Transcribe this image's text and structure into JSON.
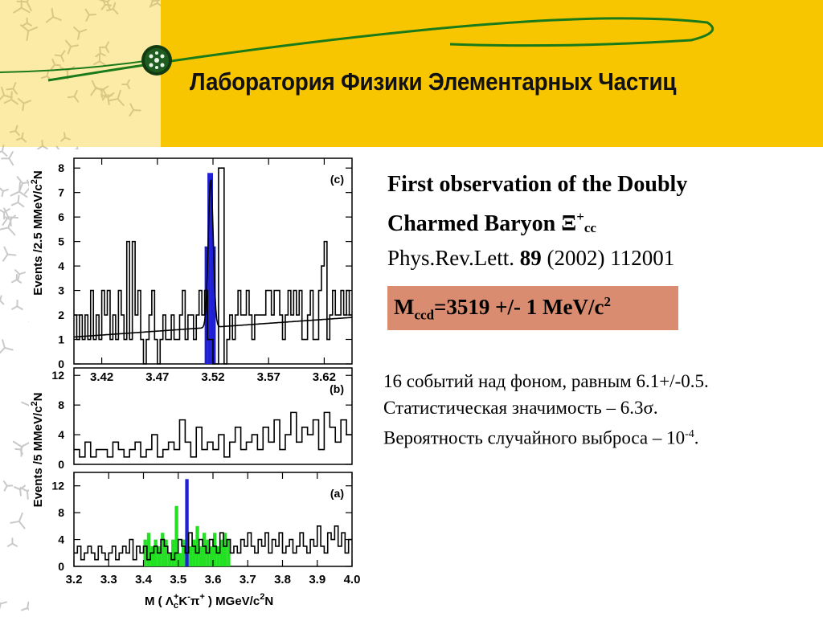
{
  "header": {
    "title": "Лаборатория Физики Элементарных Частиц",
    "logo_icon": "atom-logo-icon",
    "band_color": "#f7c600"
  },
  "paper": {
    "title_line1": "First observation of the Doubly",
    "title_line2": "Charmed Baryon Ξ",
    "title_sup": "+",
    "title_sub": "cc",
    "journal": "Phys.Rev.Lett.",
    "volume": "89",
    "year_page": "(2002) 112001"
  },
  "mass": {
    "prefix": "M",
    "sub": "ccd",
    "value": "=3519 +/- 1 MeV/c",
    "sup": "2",
    "box_color": "#d98c6f"
  },
  "facts": {
    "line1": "16 событий над фоном, равным 6.1+/-0.5.",
    "line2": "Статистическая значимость – 6.3σ.",
    "line3_main": "Вероятность случайного выброса – 10",
    "line3_sup": "-4",
    "line3_end": "."
  },
  "chart_data": [
    {
      "type": "bar",
      "label": "(c)",
      "ylabel": "Events /2.5 MeV/c²",
      "xlim": [
        3.395,
        3.645
      ],
      "ylim": [
        0,
        8.4
      ],
      "yticks": [
        "0",
        "1",
        "2",
        "3",
        "4",
        "5",
        "6",
        "7",
        "8"
      ],
      "xticks": [
        "3.42",
        "3.47",
        "3.52",
        "3.57",
        "3.62"
      ],
      "bin_start": 3.395,
      "bin_width": 0.0025,
      "values": [
        2,
        1,
        2,
        1,
        2,
        1,
        3,
        1,
        2,
        1,
        3,
        2,
        3,
        1,
        2,
        1,
        3,
        2,
        1,
        5,
        1,
        5,
        2,
        3,
        1,
        0,
        1,
        2,
        3,
        1,
        0,
        1,
        2,
        1,
        1,
        2,
        1,
        1,
        2,
        3,
        1,
        2,
        2,
        1,
        2,
        3,
        2,
        3,
        1,
        1,
        0,
        0,
        8,
        8,
        0,
        1,
        2,
        1,
        2,
        3,
        2,
        2,
        3,
        2,
        1,
        2,
        2,
        2,
        2,
        3,
        3,
        2,
        3,
        3,
        2,
        1,
        2,
        3,
        2,
        3,
        2,
        3,
        1,
        1,
        2,
        3,
        1,
        1,
        3,
        4,
        5,
        1,
        2,
        3,
        2,
        2,
        3,
        2,
        3,
        2
      ],
      "highlight": {
        "color": "#1f1fd6",
        "x_range": [
          3.5125,
          3.5225
        ],
        "values": [
          4.8,
          7.8,
          7.8,
          4.8
        ]
      },
      "fit": {
        "background_start": 1.1,
        "background_end": 1.9,
        "peak_center": 3.518,
        "peak_height": 6.1,
        "peak_sigma": 0.0022
      }
    },
    {
      "type": "bar",
      "label": "(b)",
      "ylabel": "Events /5 MeV/c²",
      "xlim": [
        3.395,
        3.645
      ],
      "ylim": [
        0,
        13
      ],
      "yticks": [
        "0",
        "4",
        "8",
        "12"
      ],
      "bin_start": 3.395,
      "bin_width": 0.005,
      "values": [
        2,
        1,
        3,
        1,
        2,
        2,
        1,
        3,
        2,
        1,
        2,
        3,
        1,
        2,
        4,
        1,
        2,
        3,
        2,
        6,
        3,
        1,
        5,
        2,
        3,
        2,
        4,
        1,
        3,
        5,
        2,
        3,
        4,
        2,
        5,
        3,
        6,
        2,
        4,
        7,
        3,
        5,
        4,
        6,
        2,
        7,
        5,
        3,
        6,
        4
      ]
    },
    {
      "type": "bar",
      "label": "(a)",
      "ylabel": "Events /5 MeV/c²",
      "xlim": [
        3.2,
        4.0
      ],
      "ylim": [
        0,
        14
      ],
      "yticks": [
        "0",
        "4",
        "8",
        "12"
      ],
      "xticks": [
        "3.2",
        "3.3",
        "3.4",
        "3.5",
        "3.6",
        "3.7",
        "3.8",
        "3.9",
        "4.0"
      ],
      "xlabel": "M ( Λc+K-π+ ) MGeV/c²N",
      "bin_start": 3.2,
      "bin_width": 0.01,
      "values": [
        2,
        3,
        1,
        2,
        3,
        2,
        1,
        3,
        2,
        1,
        2,
        3,
        1,
        2,
        3,
        2,
        4,
        1,
        3,
        2,
        3,
        1,
        2,
        3,
        2,
        4,
        3,
        2,
        1,
        2,
        4,
        3,
        2,
        5,
        3,
        2,
        4,
        3,
        2,
        4,
        3,
        2,
        5,
        3,
        4,
        2,
        3,
        2,
        4,
        3,
        5,
        3,
        2,
        4,
        3,
        5,
        2,
        4,
        3,
        5,
        2,
        3,
        4,
        2,
        3,
        5,
        3,
        2,
        4,
        3,
        6,
        3,
        2,
        5,
        4,
        6,
        3,
        5,
        2,
        4
      ],
      "green": {
        "color": "#22e022",
        "x_range": [
          3.4,
          3.65
        ],
        "values": [
          4,
          5,
          3,
          4,
          3,
          5,
          4,
          2,
          4,
          9,
          2,
          4,
          5,
          3,
          4,
          6,
          3,
          5,
          4,
          3,
          5,
          3,
          4,
          5,
          4
        ]
      },
      "blue": {
        "color": "#1f1fd6",
        "x": 3.52,
        "value": 13
      }
    }
  ],
  "chart_axes_text": {
    "c_label": "(c)",
    "b_label": "(b)",
    "a_label": "(a)",
    "ylabel_top": "Events /2.5 MMeV/c",
    "ylabel_top_sup": "2",
    "ylabel_top_tail": "N",
    "ylabel_bottom": "Events /5 MMeV/c",
    "ylabel_bottom_sup": "2",
    "ylabel_bottom_tail": "N",
    "xlabel_main": "M ( Λ",
    "xlabel_c": "c",
    "xlabel_plus1": "+",
    "xlabel_K": "K",
    "xlabel_minus": "-",
    "xlabel_pi": "π",
    "xlabel_plus2": "+",
    "xlabel_tail": " ) MGeV/c",
    "xlabel_sup": "2",
    "xlabel_end": "N"
  }
}
